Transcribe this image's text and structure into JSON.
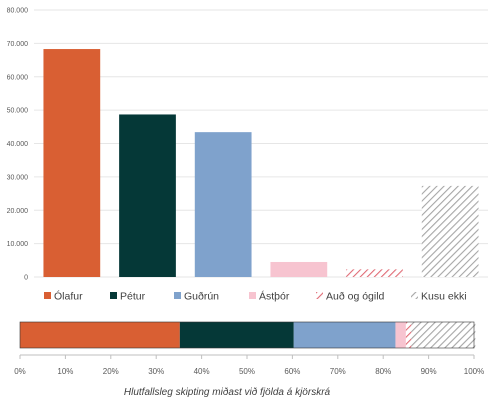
{
  "chart_data": [
    {
      "type": "bar",
      "categories": [
        "Ólafur",
        "Pétur",
        "Guðrún",
        "Ástþór",
        "Auð og ógild",
        "Kusu ekki"
      ],
      "values": [
        68300,
        48700,
        43400,
        4500,
        2300,
        27300
      ],
      "colors": [
        "#d95f33",
        "#053837",
        "#7fa2cc",
        "#f7c4d0",
        "#e8a1a8",
        "#bfbfbf"
      ],
      "patterns": [
        "solid",
        "solid",
        "solid",
        "solid",
        "hatch",
        "hatch"
      ],
      "ylim": [
        0,
        80000
      ],
      "yticks": [
        "0",
        "10.000",
        "20.000",
        "30.000",
        "40.000",
        "50.000",
        "60.000",
        "70.000",
        "80.000"
      ],
      "grid": true,
      "legend_position": "bottom"
    },
    {
      "type": "bar",
      "orientation": "horizontal-stacked",
      "categories": [
        "Ólafur",
        "Pétur",
        "Guðrún",
        "Ástþór",
        "Auð og ógild",
        "Kusu ekki"
      ],
      "values": [
        35.2,
        25.1,
        22.4,
        2.3,
        1.2,
        14.1
      ],
      "xlim": [
        0,
        100
      ],
      "xticks": [
        "0%",
        "10%",
        "20%",
        "30%",
        "40%",
        "50%",
        "60%",
        "70%",
        "80%",
        "90%",
        "100%"
      ],
      "xlabel": "Hlutfallsleg skipting miðast við fjölda á kjörskrá"
    }
  ]
}
